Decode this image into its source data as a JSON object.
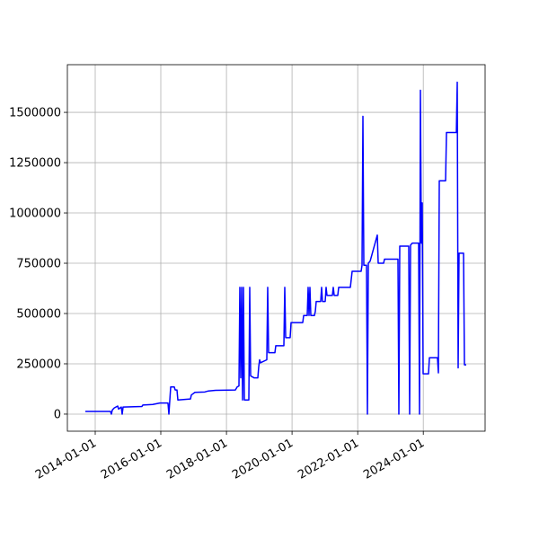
{
  "chart_data": {
    "type": "line",
    "x": [
      "2013-09-13",
      "2014-06-20",
      "2014-06-30",
      "2014-07-10",
      "2014-07-30",
      "2014-09-08",
      "2014-09-18",
      "2014-10-18",
      "2014-10-28",
      "2014-11-07",
      "2015-06-05",
      "2015-06-15",
      "2015-10-03",
      "2015-12-22",
      "2016-03-21",
      "2016-03-31",
      "2016-04-20",
      "2016-05-30",
      "2016-06-09",
      "2016-06-29",
      "2016-07-09",
      "2016-11-26",
      "2016-12-06",
      "2017-01-15",
      "2017-05-05",
      "2017-06-14",
      "2017-09-02",
      "2018-04-10",
      "2018-04-30",
      "2018-05-20",
      "2018-05-30",
      "2018-06-09",
      "2018-06-19",
      "2018-06-29",
      "2018-07-09",
      "2018-07-19",
      "2018-09-07",
      "2018-09-17",
      "2018-09-27",
      "2018-11-06",
      "2018-12-16",
      "2018-12-26",
      "2019-01-05",
      "2019-01-15",
      "2019-03-26",
      "2019-04-05",
      "2019-04-15",
      "2019-06-24",
      "2019-07-04",
      "2019-10-02",
      "2019-10-12",
      "2019-10-22",
      "2019-12-11",
      "2019-12-21",
      "2020-04-29",
      "2020-05-09",
      "2020-06-18",
      "2020-06-28",
      "2020-07-08",
      "2020-07-18",
      "2020-07-28",
      "2020-09-06",
      "2020-09-16",
      "2020-09-26",
      "2020-11-15",
      "2020-11-25",
      "2020-12-05",
      "2021-01-04",
      "2021-01-14",
      "2021-01-24",
      "2021-03-25",
      "2021-04-04",
      "2021-04-14",
      "2021-05-24",
      "2021-06-03",
      "2021-10-11",
      "2021-10-31",
      "2022-02-08",
      "2022-02-18",
      "2022-02-28",
      "2022-03-10",
      "2022-04-09",
      "2022-04-19",
      "2022-04-29",
      "2022-05-19",
      "2022-08-07",
      "2022-08-17",
      "2022-10-16",
      "2022-10-26",
      "2023-03-25",
      "2023-04-04",
      "2023-04-14",
      "2023-07-23",
      "2023-08-02",
      "2023-08-12",
      "2023-09-01",
      "2023-11-10",
      "2023-11-20",
      "2023-11-30",
      "2023-12-10",
      "2023-12-20",
      "2023-12-30",
      "2024-02-28",
      "2024-03-09",
      "2024-06-07",
      "2024-06-17",
      "2024-06-27",
      "2024-09-05",
      "2024-09-15",
      "2025-01-03",
      "2025-01-13",
      "2025-01-23",
      "2025-02-02",
      "2025-03-24",
      "2025-04-03",
      "2025-04-23"
    ],
    "values": [
      13000,
      13000,
      0,
      20000,
      30000,
      40000,
      25000,
      35000,
      0,
      35000,
      38000,
      45000,
      48000,
      55000,
      55000,
      0,
      135000,
      135000,
      120000,
      120000,
      70000,
      75000,
      95000,
      108000,
      110000,
      115000,
      118000,
      120000,
      135000,
      140000,
      630000,
      180000,
      630000,
      70000,
      630000,
      70000,
      70000,
      630000,
      190000,
      180000,
      180000,
      235000,
      270000,
      255000,
      270000,
      630000,
      305000,
      305000,
      340000,
      340000,
      630000,
      380000,
      380000,
      455000,
      455000,
      490000,
      490000,
      630000,
      490000,
      630000,
      490000,
      490000,
      510000,
      560000,
      560000,
      630000,
      560000,
      560000,
      630000,
      590000,
      590000,
      630000,
      590000,
      590000,
      630000,
      630000,
      710000,
      710000,
      740000,
      1480000,
      740000,
      740000,
      0,
      750000,
      760000,
      890000,
      750000,
      750000,
      770000,
      770000,
      0,
      835000,
      835000,
      0,
      840000,
      850000,
      850000,
      0,
      1610000,
      850000,
      1050000,
      200000,
      200000,
      280000,
      280000,
      205000,
      1160000,
      1160000,
      1400000,
      1400000,
      1650000,
      230000,
      800000,
      800000,
      245000,
      245000
    ],
    "color": "#0000ff",
    "xlim": [
      "2013-02-25",
      "2025-11-19"
    ],
    "xticks": [
      "2014-01-01",
      "2016-01-01",
      "2018-01-01",
      "2020-01-01",
      "2022-01-01",
      "2024-01-01"
    ],
    "ylim": [
      -85000,
      1737000
    ],
    "yticks": [
      0,
      250000,
      500000,
      750000,
      1000000,
      1250000,
      1500000
    ],
    "grid": true
  }
}
